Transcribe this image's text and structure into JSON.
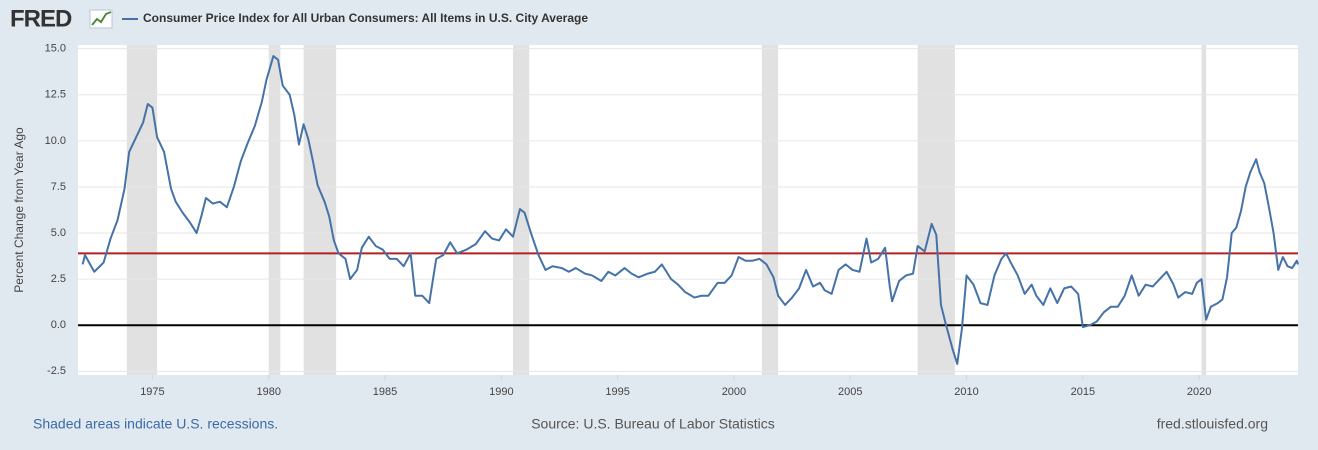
{
  "logo": "FRED",
  "chart_data": {
    "type": "line",
    "ylabel": "Percent Change from Year Ago",
    "note": "Shaded areas indicate U.S. recessions.",
    "source": "Source: U.S. Bureau of Labor Statistics",
    "website": "fred.stlouisfed.org",
    "xlim": [
      1971.8,
      2024.25
    ],
    "ylim": [
      -2.7,
      15.2
    ],
    "xticks": [
      1975,
      1980,
      1985,
      1990,
      1995,
      2000,
      2005,
      2010,
      2015,
      2020
    ],
    "yticks": [
      {
        "value": 15,
        "label": "15.0"
      },
      12.5,
      {
        "value": 10,
        "label": "10.0"
      },
      7.5,
      {
        "value": 5,
        "label": "5.0"
      },
      2.5,
      {
        "value": 0,
        "label": "0.0"
      },
      -2.5
    ],
    "grid": true,
    "recessions": [
      [
        1973.9,
        1975.2
      ],
      [
        1980.0,
        1980.5
      ],
      [
        1981.5,
        1982.9
      ],
      [
        1990.5,
        1991.2
      ],
      [
        2001.2,
        2001.9
      ],
      [
        2007.9,
        2009.5
      ],
      [
        2020.1,
        2020.3
      ]
    ],
    "recession_color": "#e1e1e1",
    "reference_lines": [
      {
        "value": 3.9,
        "color": "#b22222"
      },
      {
        "value": 0,
        "color": "#000000"
      }
    ],
    "x": [
      1972.0,
      1972.1,
      1972.5,
      1972.9,
      1973.2,
      1973.5,
      1973.8,
      1974.0,
      1974.3,
      1974.6,
      1974.8,
      1975.0,
      1975.2,
      1975.5,
      1975.8,
      1976.0,
      1976.3,
      1976.6,
      1976.9,
      1977.1,
      1977.3,
      1977.6,
      1977.9,
      1978.2,
      1978.5,
      1978.8,
      1979.1,
      1979.4,
      1979.7,
      1979.9,
      1980.2,
      1980.4,
      1980.6,
      1980.9,
      1981.1,
      1981.3,
      1981.5,
      1981.7,
      1981.9,
      1982.1,
      1982.4,
      1982.6,
      1982.8,
      1983.0,
      1983.3,
      1983.5,
      1983.8,
      1984.0,
      1984.3,
      1984.6,
      1984.9,
      1985.2,
      1985.5,
      1985.8,
      1986.1,
      1986.3,
      1986.6,
      1986.9,
      1987.2,
      1987.5,
      1987.8,
      1988.1,
      1988.5,
      1988.9,
      1989.3,
      1989.6,
      1989.9,
      1990.2,
      1990.5,
      1990.8,
      1991.0,
      1991.3,
      1991.6,
      1991.9,
      1992.2,
      1992.6,
      1992.9,
      1993.2,
      1993.6,
      1993.9,
      1994.3,
      1994.6,
      1994.9,
      1995.3,
      1995.6,
      1995.9,
      1996.3,
      1996.6,
      1996.9,
      1997.3,
      1997.6,
      1997.9,
      1998.3,
      1998.6,
      1998.9,
      1999.3,
      1999.6,
      1999.9,
      2000.2,
      2000.5,
      2000.8,
      2001.1,
      2001.4,
      2001.7,
      2001.9,
      2002.2,
      2002.5,
      2002.8,
      2003.1,
      2003.4,
      2003.7,
      2003.9,
      2004.2,
      2004.5,
      2004.8,
      2005.1,
      2005.4,
      2005.7,
      2005.9,
      2006.2,
      2006.5,
      2006.7,
      2006.8,
      2007.1,
      2007.4,
      2007.7,
      2007.9,
      2008.2,
      2008.5,
      2008.7,
      2008.9,
      2009.1,
      2009.4,
      2009.6,
      2009.8,
      2010.0,
      2010.3,
      2010.6,
      2010.9,
      2011.2,
      2011.5,
      2011.7,
      2011.9,
      2012.2,
      2012.5,
      2012.8,
      2013.0,
      2013.3,
      2013.6,
      2013.9,
      2014.2,
      2014.5,
      2014.8,
      2015.0,
      2015.3,
      2015.6,
      2015.9,
      2016.2,
      2016.5,
      2016.8,
      2017.1,
      2017.4,
      2017.7,
      2018.0,
      2018.3,
      2018.6,
      2018.9,
      2019.1,
      2019.4,
      2019.7,
      2019.9,
      2020.1,
      2020.3,
      2020.5,
      2020.8,
      2021.0,
      2021.2,
      2021.4,
      2021.6,
      2021.8,
      2022.0,
      2022.2,
      2022.45,
      2022.6,
      2022.8,
      2023.0,
      2023.2,
      2023.4,
      2023.6,
      2023.8,
      2024.0,
      2024.2,
      2024.25
    ],
    "series": [
      {
        "name": "Consumer Price Index for All Urban Consumers: All Items in U.S. City Average",
        "color": "#4572a7",
        "values": [
          3.3,
          3.8,
          2.9,
          3.4,
          4.7,
          5.7,
          7.4,
          9.4,
          10.2,
          11.0,
          12.0,
          11.8,
          10.2,
          9.4,
          7.4,
          6.7,
          6.1,
          5.6,
          5.0,
          5.9,
          6.9,
          6.6,
          6.7,
          6.4,
          7.5,
          8.9,
          9.9,
          10.8,
          12.1,
          13.3,
          14.6,
          14.4,
          13.0,
          12.5,
          11.4,
          9.8,
          10.9,
          10.1,
          8.9,
          7.6,
          6.7,
          5.9,
          4.6,
          3.9,
          3.6,
          2.5,
          3.0,
          4.2,
          4.8,
          4.3,
          4.1,
          3.6,
          3.6,
          3.2,
          3.9,
          1.6,
          1.6,
          1.2,
          3.6,
          3.8,
          4.5,
          3.9,
          4.1,
          4.4,
          5.1,
          4.7,
          4.6,
          5.2,
          4.8,
          6.3,
          6.1,
          4.9,
          3.8,
          3.0,
          3.2,
          3.1,
          2.9,
          3.1,
          2.8,
          2.7,
          2.4,
          2.9,
          2.7,
          3.1,
          2.8,
          2.6,
          2.8,
          2.9,
          3.3,
          2.5,
          2.2,
          1.8,
          1.5,
          1.6,
          1.6,
          2.3,
          2.3,
          2.7,
          3.7,
          3.5,
          3.5,
          3.6,
          3.3,
          2.6,
          1.6,
          1.1,
          1.5,
          2.0,
          3.0,
          2.1,
          2.3,
          1.9,
          1.7,
          3.0,
          3.3,
          3.0,
          2.9,
          4.7,
          3.4,
          3.6,
          4.2,
          2.1,
          1.3,
          2.4,
          2.7,
          2.8,
          4.3,
          4.0,
          5.5,
          4.9,
          1.1,
          0.1,
          -1.3,
          -2.1,
          -0.2,
          2.7,
          2.2,
          1.2,
          1.1,
          2.7,
          3.6,
          3.9,
          3.4,
          2.7,
          1.7,
          2.2,
          1.6,
          1.1,
          2.0,
          1.2,
          2.0,
          2.1,
          1.7,
          -0.1,
          0.0,
          0.2,
          0.7,
          1.0,
          1.0,
          1.6,
          2.7,
          1.6,
          2.2,
          2.1,
          2.5,
          2.9,
          2.2,
          1.5,
          1.8,
          1.7,
          2.3,
          2.5,
          0.3,
          1.0,
          1.2,
          1.4,
          2.6,
          5.0,
          5.3,
          6.2,
          7.5,
          8.3,
          9.0,
          8.3,
          7.7,
          6.4,
          5.0,
          3.0,
          3.7,
          3.2,
          3.1,
          3.5,
          3.3
        ]
      }
    ]
  }
}
